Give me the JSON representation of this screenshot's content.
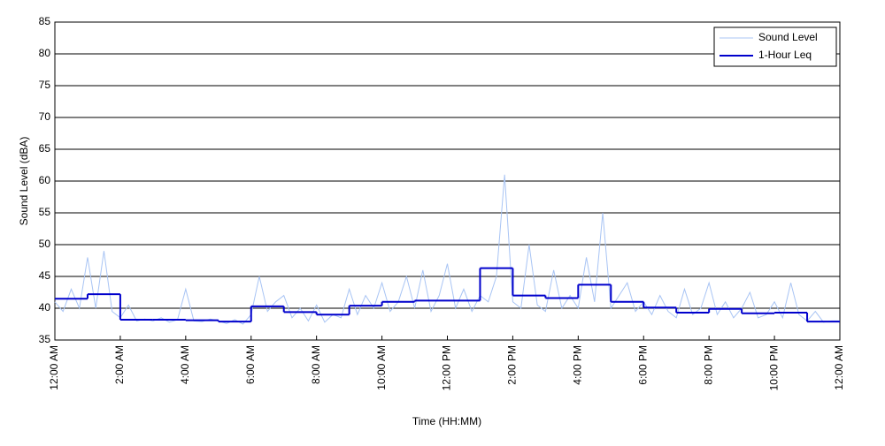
{
  "chart_data": {
    "type": "line",
    "xlabel": "Time (HH:MM)",
    "ylabel": "Sound Level (dBA)",
    "xlim": [
      0,
      24
    ],
    "ylim": [
      35,
      85
    ],
    "xticks": [
      {
        "value": 0,
        "label": "12:00 AM"
      },
      {
        "value": 2,
        "label": "2:00 AM"
      },
      {
        "value": 4,
        "label": "4:00 AM"
      },
      {
        "value": 6,
        "label": "6:00 AM"
      },
      {
        "value": 8,
        "label": "8:00 AM"
      },
      {
        "value": 10,
        "label": "10:00 AM"
      },
      {
        "value": 12,
        "label": "12:00 PM"
      },
      {
        "value": 14,
        "label": "2:00 PM"
      },
      {
        "value": 16,
        "label": "4:00 PM"
      },
      {
        "value": 18,
        "label": "6:00 PM"
      },
      {
        "value": 20,
        "label": "8:00 PM"
      },
      {
        "value": 22,
        "label": "10:00 PM"
      },
      {
        "value": 24,
        "label": "12:00 AM"
      }
    ],
    "yticks": [
      35,
      40,
      45,
      50,
      55,
      60,
      65,
      70,
      75,
      80,
      85
    ],
    "grid": true,
    "legend": "upper right",
    "series": [
      {
        "name": "Sound Level",
        "color": "#a8c4f4",
        "step": false,
        "x": [
          0,
          0.25,
          0.5,
          0.75,
          1,
          1.25,
          1.5,
          1.75,
          2,
          2.25,
          2.5,
          2.75,
          3,
          3.25,
          3.5,
          3.75,
          4,
          4.25,
          4.5,
          4.75,
          5,
          5.25,
          5.5,
          5.75,
          6,
          6.25,
          6.5,
          6.75,
          7,
          7.25,
          7.5,
          7.75,
          8,
          8.25,
          8.5,
          8.75,
          9,
          9.25,
          9.5,
          9.75,
          10,
          10.25,
          10.5,
          10.75,
          11,
          11.25,
          11.5,
          11.75,
          12,
          12.25,
          12.5,
          12.75,
          13,
          13.25,
          13.5,
          13.75,
          14,
          14.25,
          14.5,
          14.75,
          15,
          15.25,
          15.5,
          15.75,
          16,
          16.25,
          16.5,
          16.75,
          17,
          17.25,
          17.5,
          17.75,
          18,
          18.25,
          18.5,
          18.75,
          19,
          19.25,
          19.5,
          19.75,
          20,
          20.25,
          20.5,
          20.75,
          21,
          21.25,
          21.5,
          21.75,
          22,
          22.25,
          22.5,
          22.75,
          23,
          23.25,
          23.5,
          23.75,
          24
        ],
        "values": [
          41,
          39.5,
          43,
          40,
          48,
          40,
          49,
          39.5,
          38.5,
          40.5,
          38,
          38.3,
          38,
          38.5,
          37.8,
          38.2,
          43,
          38,
          37.9,
          38.3,
          38,
          37.6,
          38.2,
          37.5,
          39,
          45,
          39.5,
          41,
          42,
          38.5,
          40,
          38,
          40.5,
          37.8,
          39,
          38.5,
          43,
          39,
          42,
          40,
          44,
          39.5,
          41,
          45,
          40,
          46,
          39.5,
          42,
          47,
          40,
          43,
          39.5,
          42,
          41,
          45,
          61,
          41,
          40,
          50,
          40.5,
          39.5,
          46,
          40,
          42,
          40,
          48,
          41,
          55,
          40,
          42,
          44,
          39.5,
          41,
          39,
          42,
          39.5,
          38.5,
          43,
          39,
          40,
          44,
          39,
          41,
          38.5,
          40,
          42.5,
          38.5,
          39,
          41,
          38.5,
          44,
          39,
          38,
          39.5,
          37.8,
          38,
          38
        ]
      },
      {
        "name": "1-Hour Leq",
        "color": "#0000cc",
        "step": true,
        "x": [
          0,
          1,
          2,
          3,
          4,
          5,
          6,
          7,
          8,
          9,
          10,
          11,
          12,
          13,
          14,
          15,
          16,
          17,
          18,
          19,
          20,
          21,
          22,
          23
        ],
        "values": [
          41.5,
          42.2,
          38.2,
          38.2,
          38.1,
          37.9,
          40.3,
          39.4,
          39.0,
          40.4,
          41.0,
          41.2,
          41.2,
          46.3,
          42.0,
          41.6,
          43.7,
          41.0,
          40.1,
          39.3,
          39.9,
          39.2,
          39.3,
          37.9
        ]
      }
    ]
  }
}
